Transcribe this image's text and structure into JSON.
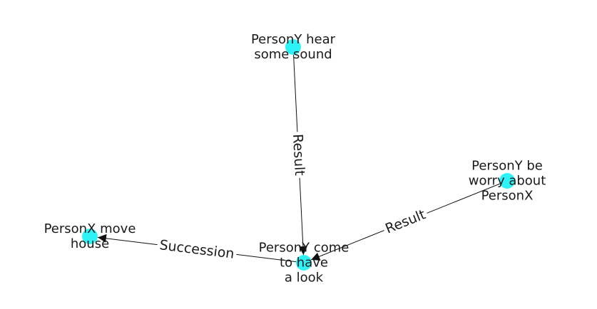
{
  "graph": {
    "colors": {
      "node": "#2ff2f7",
      "edge": "#111111",
      "label": "#1a1a1a",
      "background": "#ffffff"
    },
    "nodes": [
      {
        "id": "hear",
        "lines": [
          "PersonY hear",
          "some sound"
        ]
      },
      {
        "id": "worry",
        "lines": [
          "PersonY be",
          "worry about",
          "PersonX"
        ]
      },
      {
        "id": "move",
        "lines": [
          "PersonX move",
          "house"
        ]
      },
      {
        "id": "come",
        "lines": [
          "PersonY come",
          "to have",
          "a look"
        ]
      }
    ],
    "edges": [
      {
        "from": "hear",
        "to": "come",
        "label": "Result"
      },
      {
        "from": "worry",
        "to": "come",
        "label": "Result"
      },
      {
        "from": "come",
        "to": "move",
        "label": "Succession"
      }
    ]
  }
}
